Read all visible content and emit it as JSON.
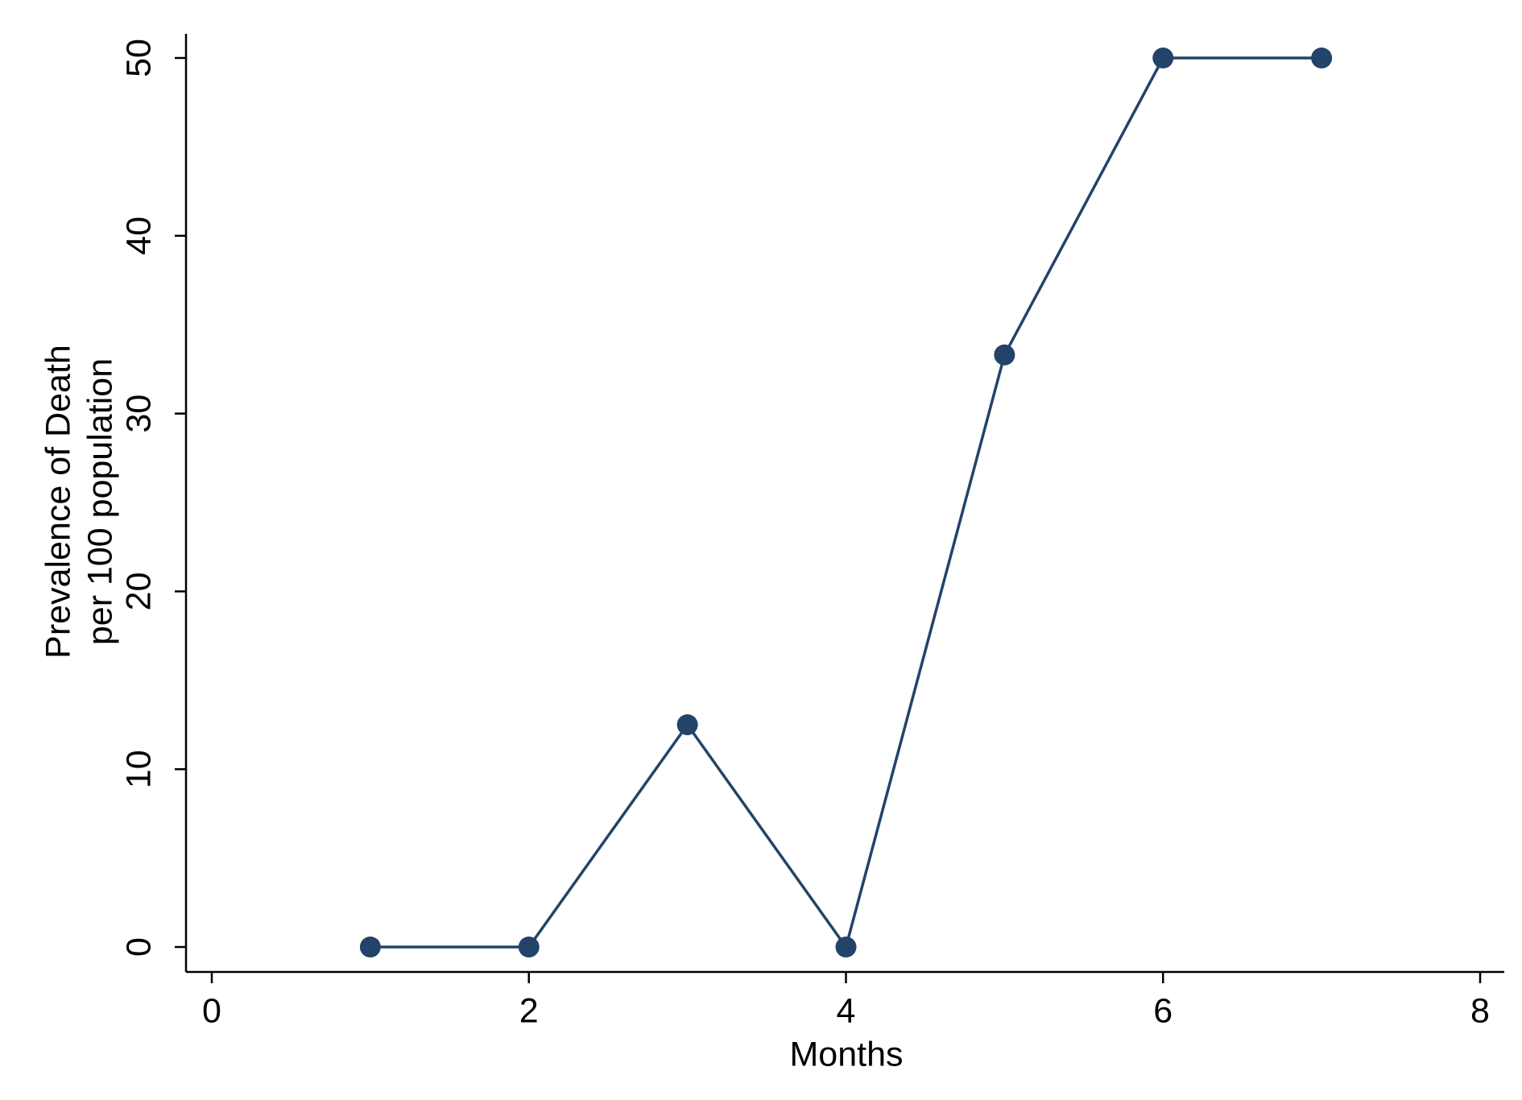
{
  "chart_data": {
    "type": "line",
    "xlabel": "Months",
    "ylabel": [
      "Prevalence of Death",
      "per 100 population"
    ],
    "x": [
      1,
      2,
      3,
      4,
      5,
      6,
      7
    ],
    "series": [
      {
        "color": "#24436a",
        "values": [
          0,
          0,
          12.5,
          0,
          33.3,
          50,
          50
        ]
      }
    ],
    "xlim": [
      0,
      8
    ],
    "xticks": [
      0,
      2,
      4,
      6,
      8
    ],
    "ylim": [
      0,
      50
    ],
    "yticks": [
      0,
      10,
      20,
      30,
      40,
      50
    ],
    "grid": false
  }
}
